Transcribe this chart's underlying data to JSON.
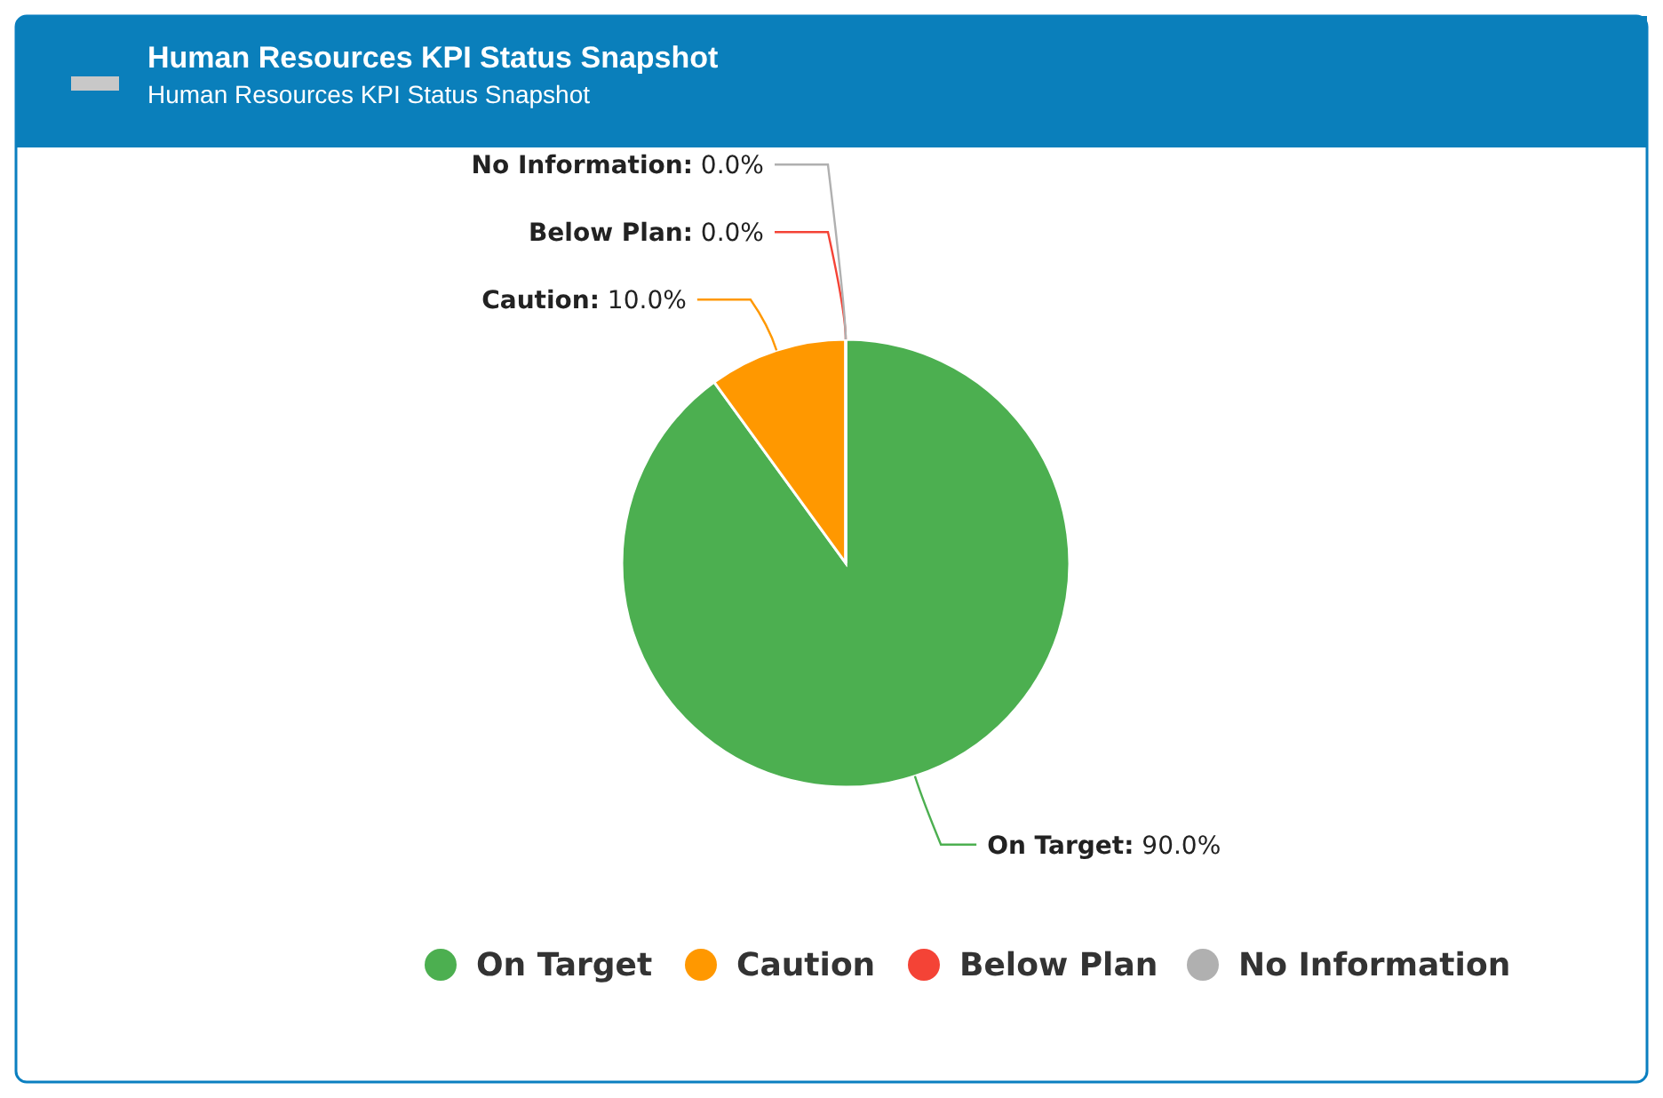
{
  "chart_data": {
    "type": "pie",
    "title": "Human Resources KPI Status Snapshot",
    "subtitle": "Human Resources KPI Status Snapshot",
    "categories": [
      "On Target",
      "Caution",
      "Below Plan",
      "No Information"
    ],
    "values": [
      90,
      10,
      0,
      0
    ],
    "colors": [
      "#4caf50",
      "#ff9800",
      "#f44336",
      "#b0b0b0"
    ],
    "value_labels": [
      "On Target: 90.0%",
      "Caution: 10.0%",
      "Below Plan: 0.0%",
      "No Information: 0.0%"
    ],
    "legend": "bottom"
  }
}
